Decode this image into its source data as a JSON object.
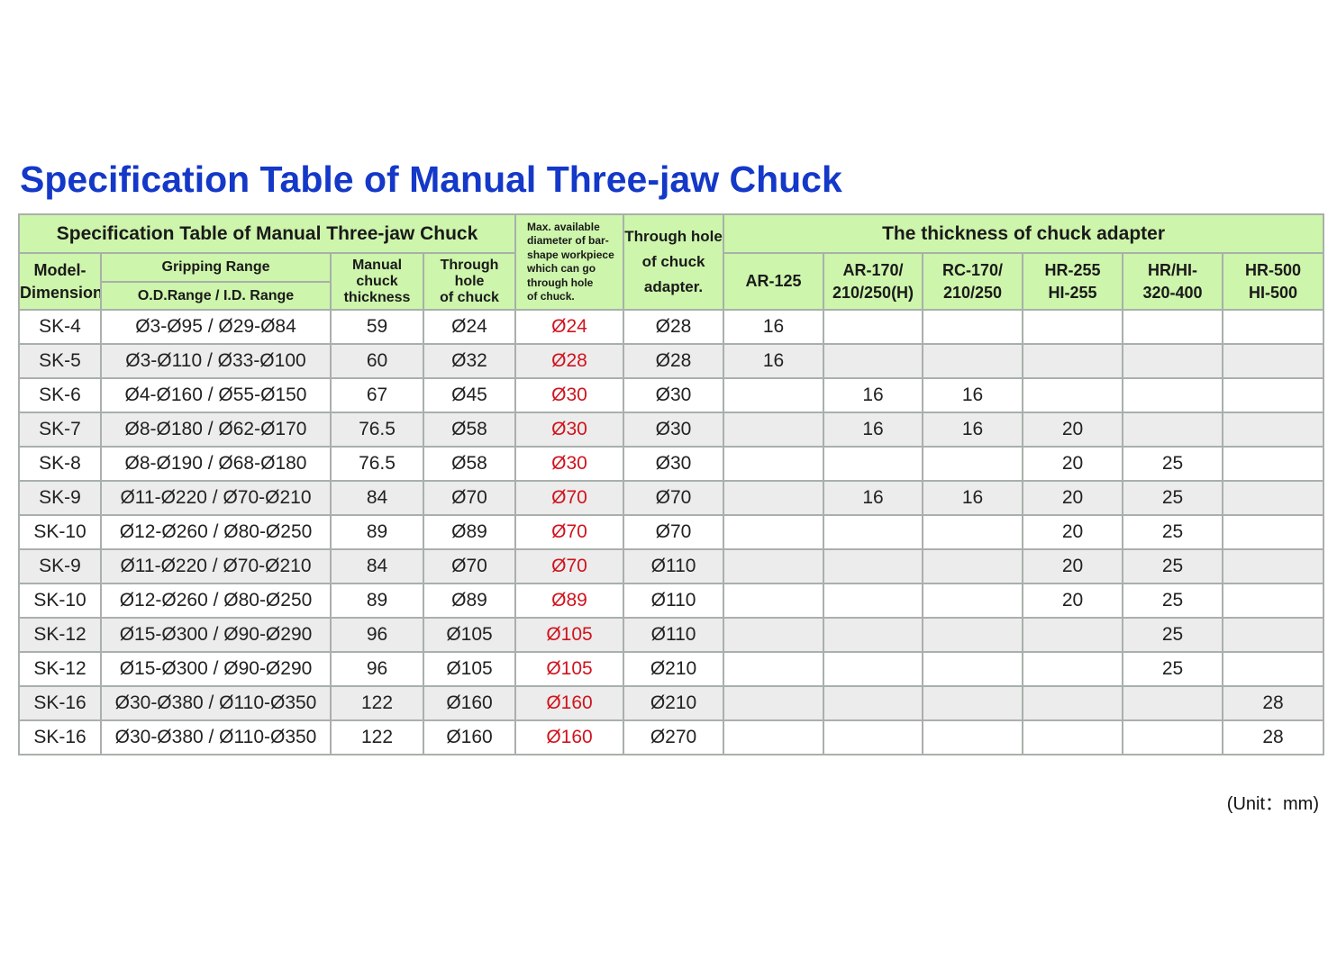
{
  "title": "Specification Table of Manual Three-jaw Chuck",
  "table": {
    "header": {
      "caption": "Specification Table of Manual Three-jaw Chuck",
      "model": [
        "Model-",
        "Dimension"
      ],
      "gripping_range": "Gripping Range",
      "od_id_range": "O.D.Range  /  I.D. Range",
      "thickness": [
        "Manual",
        "chuck",
        "thickness"
      ],
      "through_hole": [
        "Through",
        "hole",
        "of chuck"
      ],
      "max_bar": [
        "Max. available",
        "diameter of bar-",
        "shape workpiece",
        "which can go",
        "through hole",
        "of chuck."
      ],
      "adapter_hole": [
        "Through hole",
        "of chuck",
        "adapter."
      ],
      "adapter_caption": "The thickness of chuck adapter",
      "adapters": [
        [
          "AR-125"
        ],
        [
          "AR-170/",
          "210/250(H)"
        ],
        [
          "RC-170/",
          "210/250"
        ],
        [
          "HR-255",
          "HI-255"
        ],
        [
          "HR/HI-",
          "320-400"
        ],
        [
          "HR-500",
          "HI-500"
        ]
      ]
    },
    "rows": [
      {
        "model": "SK-4",
        "range": "Ø3-Ø95  /  Ø29-Ø84",
        "thickness": 59,
        "hole": "Ø24",
        "max_bar": "Ø24",
        "adapter_hole": "Ø28",
        "adapter_thickness": [
          16,
          null,
          null,
          null,
          null,
          null
        ]
      },
      {
        "model": "SK-5",
        "range": "Ø3-Ø110 / Ø33-Ø100",
        "thickness": 60,
        "hole": "Ø32",
        "max_bar": "Ø28",
        "adapter_hole": "Ø28",
        "adapter_thickness": [
          16,
          null,
          null,
          null,
          null,
          null
        ]
      },
      {
        "model": "SK-6",
        "range": "Ø4-Ø160 / Ø55-Ø150",
        "thickness": 67,
        "hole": "Ø45",
        "max_bar": "Ø30",
        "adapter_hole": "Ø30",
        "adapter_thickness": [
          null,
          16,
          16,
          null,
          null,
          null
        ]
      },
      {
        "model": "SK-7",
        "range": "Ø8-Ø180 / Ø62-Ø170",
        "thickness": 76.5,
        "hole": "Ø58",
        "max_bar": "Ø30",
        "adapter_hole": "Ø30",
        "adapter_thickness": [
          null,
          16,
          16,
          20,
          null,
          null
        ]
      },
      {
        "model": "SK-8",
        "range": "Ø8-Ø190 / Ø68-Ø180",
        "thickness": 76.5,
        "hole": "Ø58",
        "max_bar": "Ø30",
        "adapter_hole": "Ø30",
        "adapter_thickness": [
          null,
          null,
          null,
          20,
          25,
          null
        ]
      },
      {
        "model": "SK-9",
        "range": "Ø11-Ø220 / Ø70-Ø210",
        "thickness": 84,
        "hole": "Ø70",
        "max_bar": "Ø70",
        "adapter_hole": "Ø70",
        "adapter_thickness": [
          null,
          16,
          16,
          20,
          25,
          null
        ]
      },
      {
        "model": "SK-10",
        "range": "Ø12-Ø260 / Ø80-Ø250",
        "thickness": 89,
        "hole": "Ø89",
        "max_bar": "Ø70",
        "adapter_hole": "Ø70",
        "adapter_thickness": [
          null,
          null,
          null,
          20,
          25,
          null
        ]
      },
      {
        "model": "SK-9",
        "range": "Ø11-Ø220 / Ø70-Ø210",
        "thickness": 84,
        "hole": "Ø70",
        "max_bar": "Ø70",
        "adapter_hole": "Ø110",
        "adapter_thickness": [
          null,
          null,
          null,
          20,
          25,
          null
        ]
      },
      {
        "model": "SK-10",
        "range": "Ø12-Ø260 / Ø80-Ø250",
        "thickness": 89,
        "hole": "Ø89",
        "max_bar": "Ø89",
        "adapter_hole": "Ø110",
        "adapter_thickness": [
          null,
          null,
          null,
          20,
          25,
          null
        ]
      },
      {
        "model": "SK-12",
        "range": "Ø15-Ø300 / Ø90-Ø290",
        "thickness": 96,
        "hole": "Ø105",
        "max_bar": "Ø105",
        "adapter_hole": "Ø110",
        "adapter_thickness": [
          null,
          null,
          null,
          null,
          25,
          null
        ]
      },
      {
        "model": "SK-12",
        "range": "Ø15-Ø300 / Ø90-Ø290",
        "thickness": 96,
        "hole": "Ø105",
        "max_bar": "Ø105",
        "adapter_hole": "Ø210",
        "adapter_thickness": [
          null,
          null,
          null,
          null,
          25,
          null
        ]
      },
      {
        "model": "SK-16",
        "range": "Ø30-Ø380 / Ø110-Ø350",
        "thickness": 122,
        "hole": "Ø160",
        "max_bar": "Ø160",
        "adapter_hole": "Ø210",
        "adapter_thickness": [
          null,
          null,
          null,
          null,
          null,
          28
        ]
      },
      {
        "model": "SK-16",
        "range": "Ø30-Ø380 / Ø110-Ø350",
        "thickness": 122,
        "hole": "Ø160",
        "max_bar": "Ø160",
        "adapter_hole": "Ø270",
        "adapter_thickness": [
          null,
          null,
          null,
          null,
          null,
          28
        ]
      }
    ]
  },
  "unit_note": "(Unit：mm)"
}
